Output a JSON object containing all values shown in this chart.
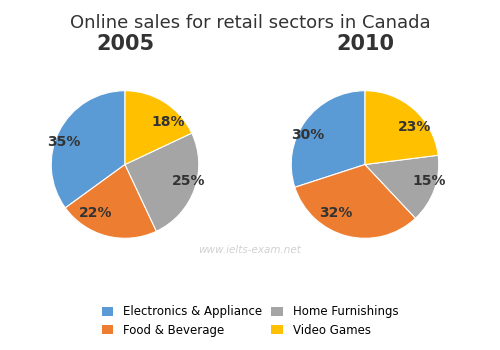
{
  "title": "Online sales for retail sectors in Canada",
  "title_fontsize": 13,
  "year_labels": [
    "2005",
    "2010"
  ],
  "year_fontsize": 15,
  "categories": [
    "Electronics & Appliance",
    "Food & Beverage",
    "Home Furnishings",
    "Video Games"
  ],
  "colors": [
    "#5B9BD5",
    "#ED7D31",
    "#A5A5A5",
    "#FFC000"
  ],
  "values_2005": [
    35,
    22,
    25,
    18
  ],
  "values_2010": [
    30,
    32,
    15,
    23
  ],
  "labels_2005": [
    "35%",
    "22%",
    "25%",
    "18%"
  ],
  "labels_2010": [
    "30%",
    "32%",
    "15%",
    "23%"
  ],
  "startangle": 90,
  "watermark": "www.ielts-exam.net",
  "watermark_color": "#CCCCCC",
  "legend_fontsize": 8.5,
  "pct_fontsize": 10,
  "background_color": "#FFFFFF"
}
